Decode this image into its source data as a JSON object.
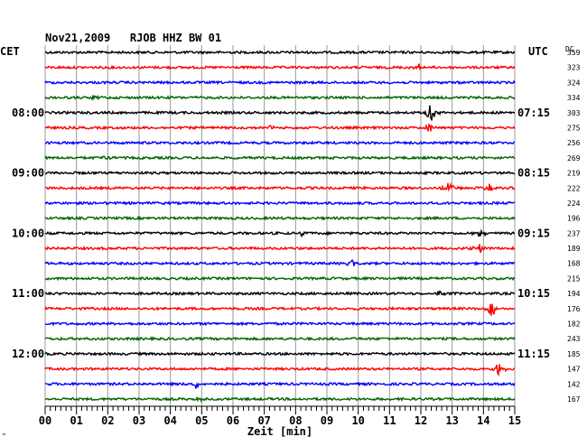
{
  "chart_data": {
    "type": "line",
    "title": "Nov21,2009   RJOB HHZ BW 01",
    "xlabel": "Zeit [min]",
    "left_axis_label": "CET",
    "right_axis_label": "UTC",
    "dc_label": "DC",
    "x_ticks": [
      "00",
      "01",
      "02",
      "03",
      "04",
      "05",
      "06",
      "07",
      "08",
      "09",
      "10",
      "11",
      "12",
      "13",
      "14",
      "15"
    ],
    "xlim": [
      0,
      15
    ],
    "grid": true,
    "left_hour_labels": [
      "08:00",
      "09:00",
      "10:00",
      "11:00",
      "12:00"
    ],
    "right_hour_labels": [
      "07:15",
      "08:15",
      "09:15",
      "10:15",
      "11:15"
    ],
    "trace_colors": [
      "#000000",
      "#ff0000",
      "#0000ff",
      "#006400"
    ],
    "dc_values": [
      "359",
      "323",
      "324",
      "334",
      "303",
      "275",
      "256",
      "269",
      "219",
      "222",
      "224",
      "196",
      "237",
      "189",
      "168",
      "215",
      "194",
      "176",
      "182",
      "243",
      "185",
      "147",
      "142",
      "167"
    ],
    "events": [
      {
        "trace": 1,
        "minute": 11.9,
        "amp": 5
      },
      {
        "trace": 4,
        "minute": 12.3,
        "amp": 14
      },
      {
        "trace": 5,
        "minute": 12.3,
        "amp": 6
      },
      {
        "trace": 5,
        "minute": 7.2,
        "amp": 3
      },
      {
        "trace": 9,
        "minute": 12.9,
        "amp": 7
      },
      {
        "trace": 9,
        "minute": 14.2,
        "amp": 6
      },
      {
        "trace": 12,
        "minute": 8.2,
        "amp": 3
      },
      {
        "trace": 12,
        "minute": 13.9,
        "amp": 5
      },
      {
        "trace": 13,
        "minute": 13.9,
        "amp": 7
      },
      {
        "trace": 14,
        "minute": 9.8,
        "amp": 4
      },
      {
        "trace": 16,
        "minute": 12.6,
        "amp": 4
      },
      {
        "trace": 17,
        "minute": 14.3,
        "amp": 16
      },
      {
        "trace": 21,
        "minute": 14.5,
        "amp": 9
      },
      {
        "trace": 22,
        "minute": 4.8,
        "amp": 5
      },
      {
        "trace": 23,
        "minute": 5.0,
        "amp": 3
      },
      {
        "trace": 3,
        "minute": 1.5,
        "amp": 3
      },
      {
        "trace": 7,
        "minute": 1.9,
        "amp": 3
      }
    ]
  },
  "footer_mark": "\""
}
